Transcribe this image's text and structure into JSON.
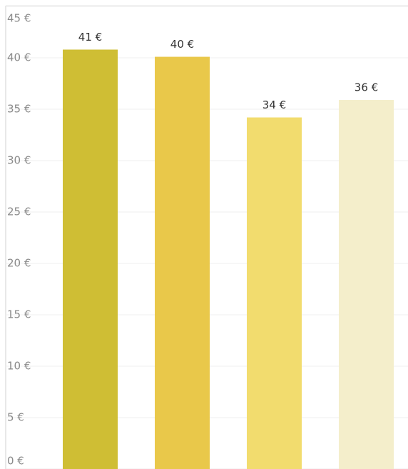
{
  "chart_data": {
    "type": "bar",
    "categories": [
      null,
      null,
      null,
      null
    ],
    "values": [
      40.8,
      40.1,
      34.2,
      35.9
    ],
    "value_labels": [
      "41 €",
      "40 €",
      "34 €",
      "36 €"
    ],
    "colors": [
      "#cfbe34",
      "#e9c84a",
      "#f2dc6e",
      "#f4eecb"
    ],
    "ylim": [
      0,
      45
    ],
    "yticks": [
      {
        "value": 0,
        "label": "0 €"
      },
      {
        "value": 5,
        "label": "5 €"
      },
      {
        "value": 10,
        "label": "10 €"
      },
      {
        "value": 15,
        "label": "15 €"
      },
      {
        "value": 20,
        "label": "20 €"
      },
      {
        "value": 25,
        "label": "25 €"
      },
      {
        "value": 30,
        "label": "30 €"
      },
      {
        "value": 35,
        "label": "35 €"
      },
      {
        "value": 40,
        "label": "40 €"
      },
      {
        "value": 45,
        "label": "45 €"
      }
    ],
    "grid": true
  }
}
